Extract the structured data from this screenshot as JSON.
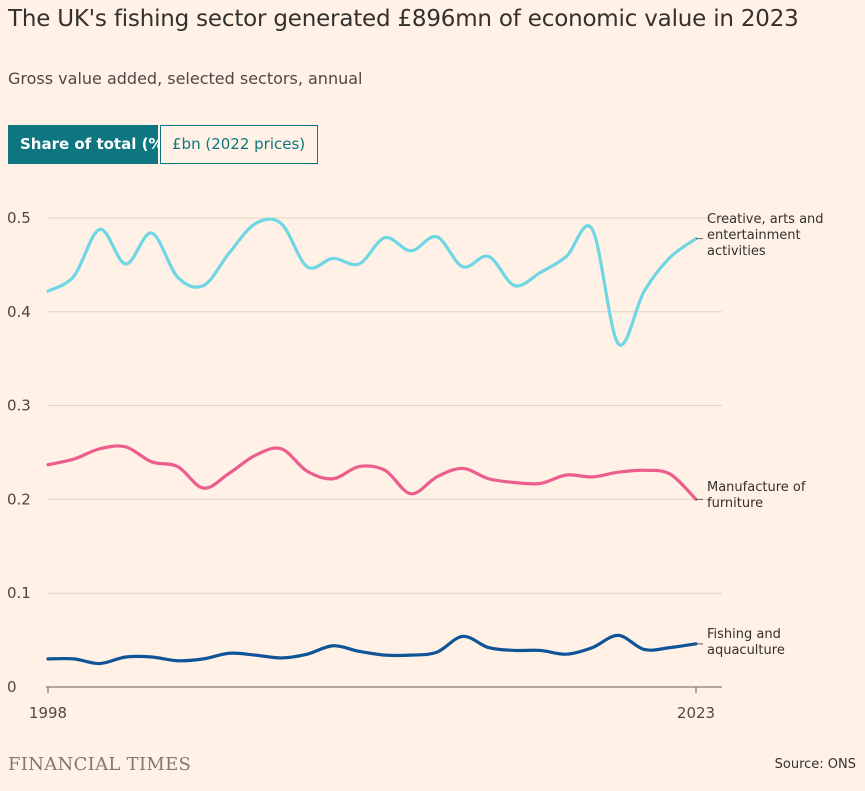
{
  "header": {
    "title": "The UK's fishing sector generated £896mn of economic value in 2023",
    "subtitle": "Gross value added, selected sectors, annual"
  },
  "toggles": [
    {
      "label": "Share of total (%)",
      "active": true
    },
    {
      "label": "£bn (2022 prices)",
      "active": false
    }
  ],
  "footer": {
    "logo": "FINANCIAL TIMES",
    "source": "Source: ONS"
  },
  "colors": {
    "creative": "#6fd6e4",
    "furniture": "#eb5e8d",
    "fishing": "#0f5499",
    "accent": "#0d7680"
  },
  "chart_data": {
    "type": "line",
    "x": [
      1998,
      1999,
      2000,
      2001,
      2002,
      2003,
      2004,
      2005,
      2006,
      2007,
      2008,
      2009,
      2010,
      2011,
      2012,
      2013,
      2014,
      2015,
      2016,
      2017,
      2018,
      2019,
      2020,
      2021,
      2022,
      2023
    ],
    "x_tick_labels": [
      "1998",
      "2023"
    ],
    "y_ticks": [
      0,
      0.1,
      0.2,
      0.3,
      0.4,
      0.5
    ],
    "y_tick_labels": [
      "0",
      "0.1",
      "0.2",
      "0.3",
      "0.4",
      "0.5"
    ],
    "ylim": [
      0,
      0.5
    ],
    "xlim": [
      1998,
      2023
    ],
    "grid": true,
    "series": [
      {
        "name": "Creative, arts and entertainment activities",
        "label_lines": [
          "Creative, arts and",
          "entertainment",
          "activities"
        ],
        "color_key": "creative",
        "values": [
          0.422,
          0.438,
          0.488,
          0.451,
          0.484,
          0.437,
          0.428,
          0.463,
          0.494,
          0.494,
          0.448,
          0.457,
          0.451,
          0.479,
          0.465,
          0.48,
          0.448,
          0.459,
          0.428,
          0.442,
          0.459,
          0.488,
          0.366,
          0.422,
          0.458,
          0.478
        ]
      },
      {
        "name": "Manufacture of furniture",
        "label_lines": [
          "Manufacture of",
          "furniture"
        ],
        "color_key": "furniture",
        "values": [
          0.237,
          0.243,
          0.254,
          0.256,
          0.24,
          0.235,
          0.212,
          0.228,
          0.247,
          0.254,
          0.23,
          0.222,
          0.235,
          0.231,
          0.206,
          0.224,
          0.233,
          0.222,
          0.218,
          0.217,
          0.226,
          0.224,
          0.229,
          0.231,
          0.227,
          0.2
        ]
      },
      {
        "name": "Fishing and aquaculture",
        "label_lines": [
          "Fishing and",
          "aquaculture"
        ],
        "color_key": "fishing",
        "values": [
          0.03,
          0.03,
          0.025,
          0.032,
          0.032,
          0.028,
          0.03,
          0.036,
          0.034,
          0.031,
          0.035,
          0.044,
          0.038,
          0.034,
          0.034,
          0.037,
          0.054,
          0.042,
          0.039,
          0.039,
          0.035,
          0.042,
          0.055,
          0.04,
          0.042,
          0.046
        ]
      }
    ]
  }
}
